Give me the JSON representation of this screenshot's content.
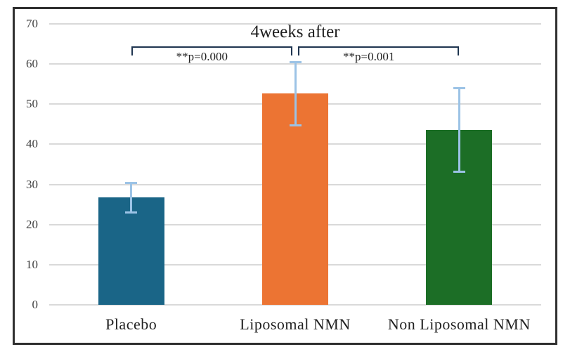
{
  "chart_data": {
    "type": "bar",
    "title": "4weeks after",
    "xlabel": "",
    "ylabel": "",
    "categories": [
      "Placebo",
      "Liposomal NMN",
      "Non Liposomal NMN"
    ],
    "values": [
      26.7,
      52.6,
      43.5
    ],
    "error_bars": [
      {
        "low": 23.0,
        "high": 30.4
      },
      {
        "low": 44.6,
        "high": 60.6
      },
      {
        "low": 33.0,
        "high": 54.1
      }
    ],
    "significance_brackets": [
      {
        "label": "**p=0.000",
        "from_category": 0,
        "to_category": 1
      },
      {
        "label": "**p=0.001",
        "from_category": 1,
        "to_category": 2
      }
    ],
    "ylim": [
      0,
      70
    ],
    "yticks": [
      0,
      10,
      20,
      30,
      40,
      50,
      60,
      70
    ],
    "grid": true,
    "legend": "none",
    "colors": {
      "bars": [
        "#1A6587",
        "#EC7433",
        "#1C6E26"
      ],
      "error_bar": "#9CC3E6",
      "bracket": "#1F3550",
      "gridline": "#D9D9D9",
      "axis_text": "#404040",
      "label_text": "#1f1f1f",
      "border": "#2f2f2f"
    }
  }
}
